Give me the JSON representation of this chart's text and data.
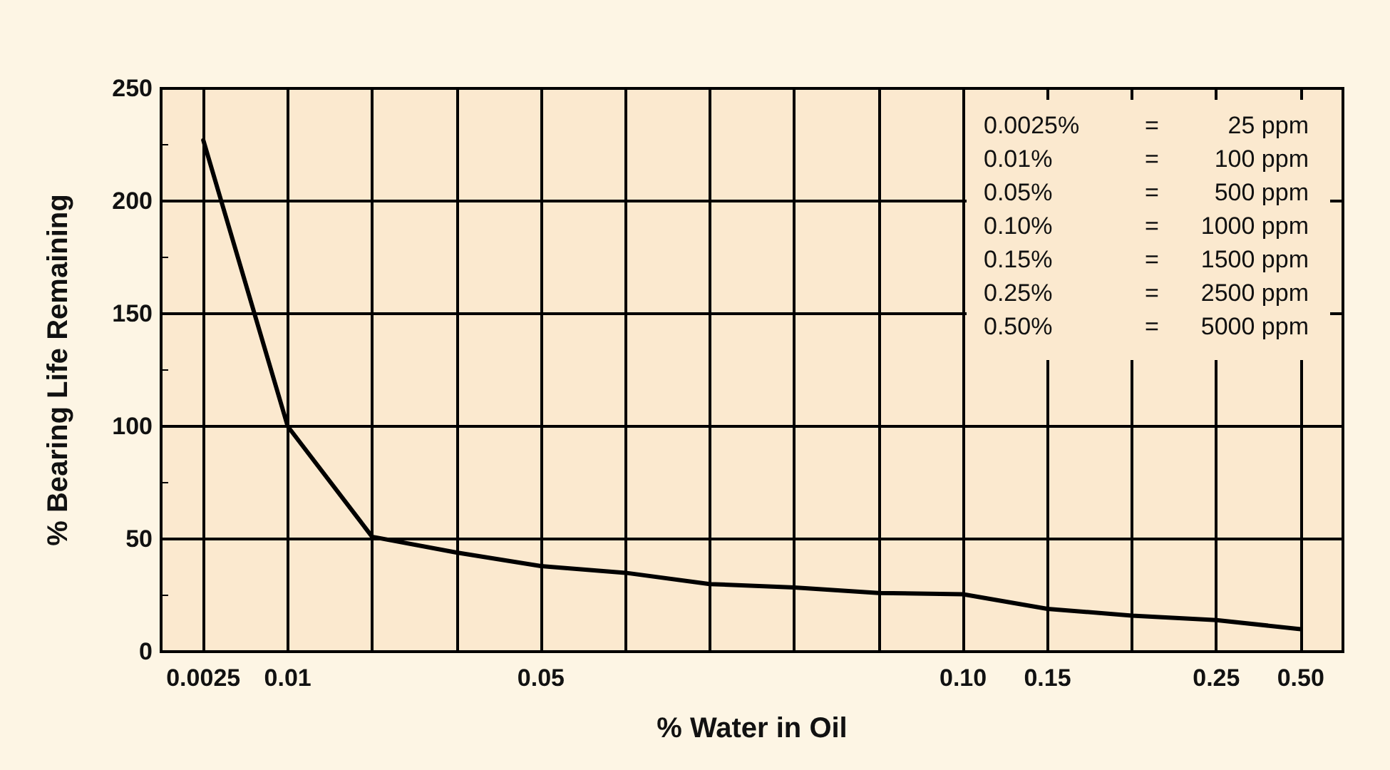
{
  "chart_data": {
    "type": "line",
    "xlabel": "% Water in Oil",
    "ylabel": "% Bearing Life Remaining",
    "categories": [
      "0.0025",
      "0.01",
      null,
      null,
      "0.05",
      null,
      null,
      null,
      null,
      "0.10",
      "0.15",
      null,
      "0.25",
      "0.50"
    ],
    "series": [
      {
        "color": "#000000",
        "values": [
          227,
          100,
          51,
          44,
          38,
          35,
          30,
          28.5,
          26,
          25.5,
          19,
          16,
          14,
          10
        ]
      }
    ],
    "ylim": [
      0,
      250
    ],
    "yticks": [
      0,
      {
        "value": 25,
        "label": null
      },
      50,
      {
        "value": 75,
        "label": null
      },
      100,
      {
        "value": 125,
        "label": null
      },
      150,
      {
        "value": 175,
        "label": null
      },
      200,
      {
        "value": 225,
        "label": null
      },
      250
    ],
    "grid": true,
    "marker": "none",
    "line_style": "solid",
    "annotations": [
      "0.0025% = 25 ppm",
      "0.01% = 100 ppm",
      "0.05% = 500 ppm",
      "0.10% = 1000 ppm",
      "0.15% = 1500 ppm",
      "0.25% = 2500 ppm",
      "0.50% = 5000 ppm"
    ]
  }
}
